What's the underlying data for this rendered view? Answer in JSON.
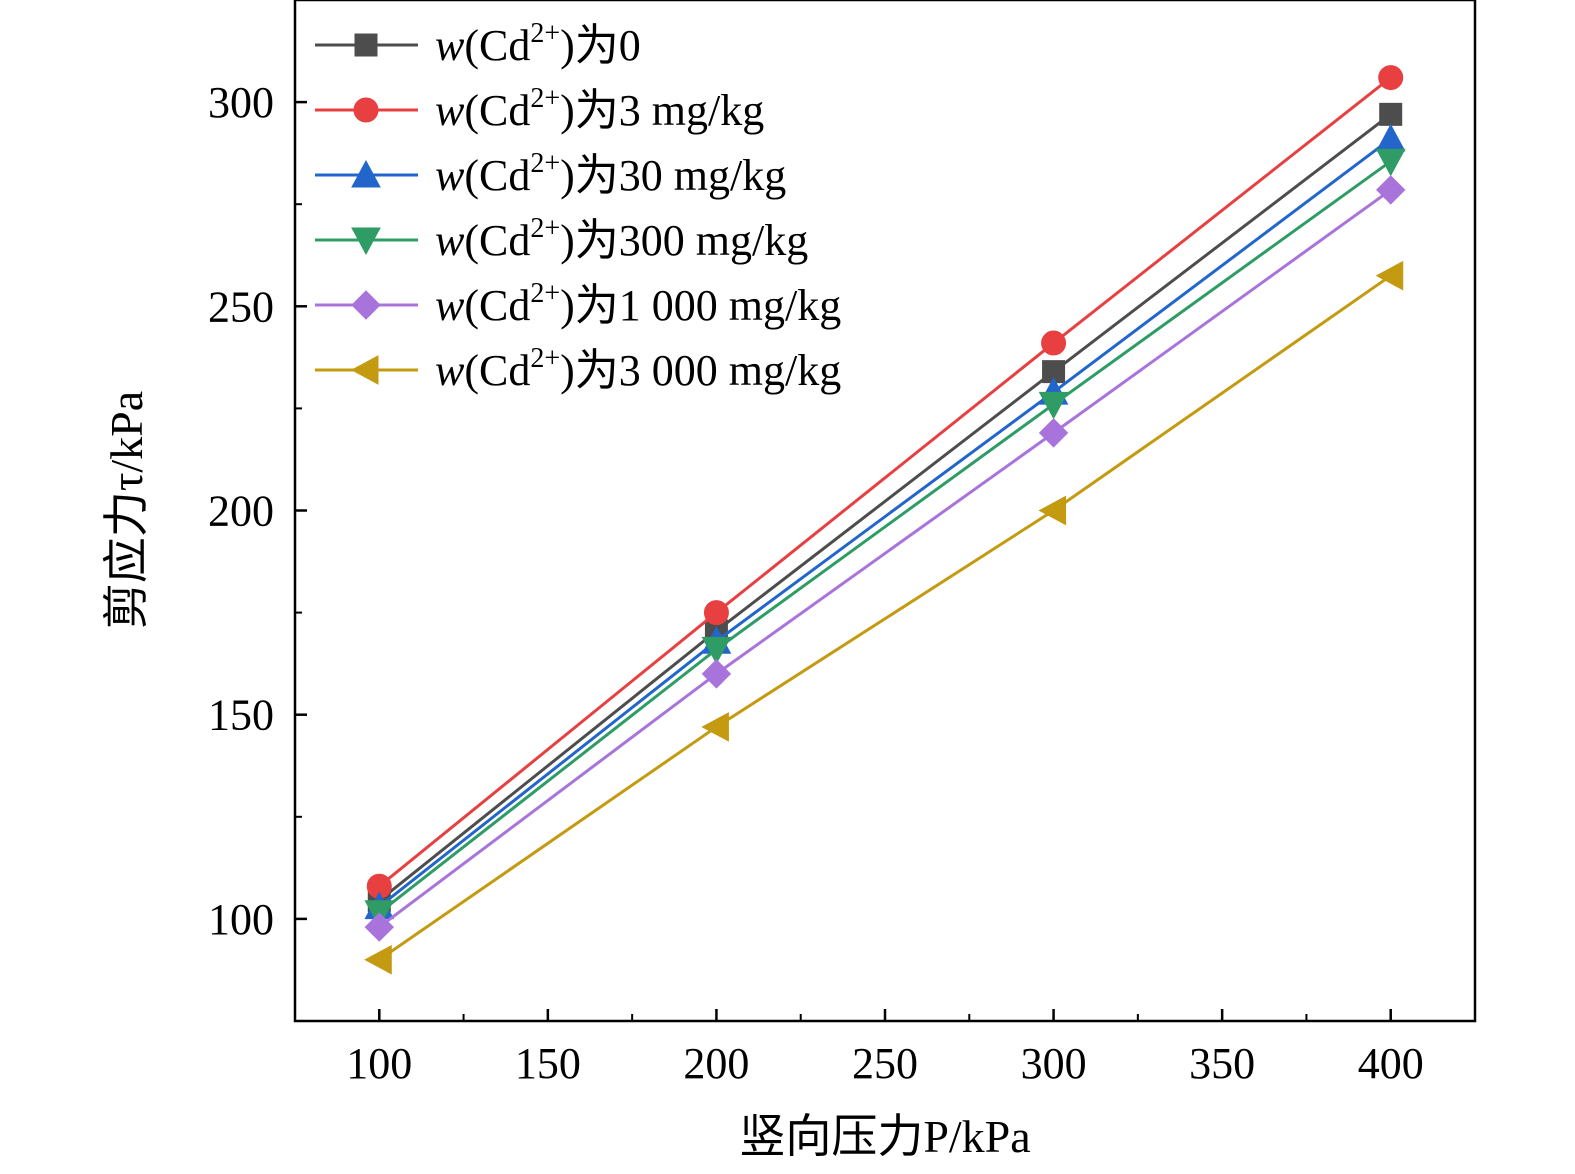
{
  "chart_data": {
    "type": "line",
    "xlabel": "竖向压力P/kPa",
    "ylabel": "剪应力τ/kPa",
    "x": [
      100,
      200,
      300,
      400
    ],
    "xlim": [
      75,
      425
    ],
    "ylim": [
      75,
      325
    ],
    "xticks": [
      100,
      150,
      200,
      250,
      300,
      350,
      400
    ],
    "yticks": [
      100,
      150,
      200,
      250,
      300
    ],
    "grid": false,
    "legend_position": "top-left",
    "series": [
      {
        "name": "w(Cd2+)为0",
        "label_prefix": "w",
        "label_mid": "(Cd",
        "label_sup": "2+",
        "label_suffix": ")为0",
        "color": "#4d4d4d",
        "marker": "square",
        "values": [
          104.5,
          170.5,
          234.0,
          297.0
        ]
      },
      {
        "name": "w(Cd2+)为3 mg/kg",
        "label_prefix": "w",
        "label_mid": "(Cd",
        "label_sup": "2+",
        "label_suffix": ")为3 mg/kg",
        "color": "#e84040",
        "marker": "circle",
        "values": [
          108.0,
          175.0,
          241.0,
          306.0
        ]
      },
      {
        "name": "w(Cd2+)为30 mg/kg",
        "label_prefix": "w",
        "label_mid": "(Cd",
        "label_sup": "2+",
        "label_suffix": ")为30 mg/kg",
        "color": "#2266cc",
        "marker": "triangle-up",
        "values": [
          103.0,
          168.0,
          229.0,
          291.0
        ]
      },
      {
        "name": "w(Cd2+)为300 mg/kg",
        "label_prefix": "w",
        "label_mid": "(Cd",
        "label_sup": "2+",
        "label_suffix": ")为300 mg/kg",
        "color": "#2e9c64",
        "marker": "triangle-down",
        "values": [
          101.5,
          166.0,
          226.0,
          285.5
        ]
      },
      {
        "name": "w(Cd2+)为1 000 mg/kg",
        "label_prefix": "w",
        "label_mid": "(Cd",
        "label_sup": "2+",
        "label_suffix": ")为1 000 mg/kg",
        "color": "#a874dc",
        "marker": "diamond",
        "values": [
          98.0,
          160.0,
          219.0,
          278.5
        ]
      },
      {
        "name": "w(Cd2+)为3 000 mg/kg",
        "label_prefix": "w",
        "label_mid": "(Cd",
        "label_sup": "2+",
        "label_suffix": ")为3 000 mg/kg",
        "color": "#c49a10",
        "marker": "triangle-left",
        "values": [
          90.0,
          147.0,
          200.0,
          257.5
        ]
      }
    ]
  }
}
